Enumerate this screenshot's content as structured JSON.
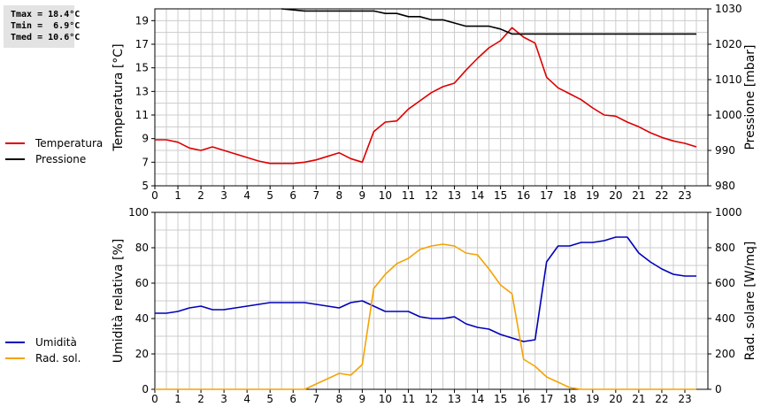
{
  "stats": {
    "tmax": "Tmax = 18.4°C",
    "tmin": "Tmin =  6.9°C",
    "tmed": "Tmed = 10.6°C"
  },
  "colors": {
    "temperature": "#dd0000",
    "pressure": "#000000",
    "humidity": "#0000bb",
    "radiation": "#f5a300",
    "grid": "#cccccc"
  },
  "legend_top": [
    {
      "label": "Temperatura",
      "color": "#dd0000"
    },
    {
      "label": "Pressione",
      "color": "#000000"
    }
  ],
  "legend_bottom": [
    {
      "label": "Umidità",
      "color": "#0000bb"
    },
    {
      "label": "Rad. sol.",
      "color": "#f5a300"
    }
  ],
  "chart_data": [
    {
      "type": "line",
      "x_ticks": [
        0,
        1,
        2,
        3,
        4,
        5,
        6,
        7,
        8,
        9,
        10,
        11,
        12,
        13,
        14,
        15,
        16,
        17,
        18,
        19,
        20,
        21,
        22,
        23
      ],
      "xlim": [
        0,
        24
      ],
      "y_left": {
        "label": "Temperatura [°C]",
        "ylim": [
          5,
          20
        ],
        "ticks": [
          5,
          7,
          9,
          11,
          13,
          15,
          17,
          19
        ]
      },
      "y_right": {
        "label": "Pressione [mbar]",
        "ylim": [
          980,
          1030
        ],
        "ticks": [
          980,
          990,
          1000,
          1010,
          1020,
          1030
        ]
      },
      "grid": true,
      "series": [
        {
          "name": "Temperatura",
          "axis": "left",
          "color": "#dd0000",
          "x": [
            0,
            0.5,
            1,
            1.5,
            2,
            2.5,
            3,
            3.5,
            4,
            4.5,
            5,
            5.5,
            6,
            6.5,
            7,
            7.5,
            8,
            8.5,
            9,
            9.5,
            10,
            10.5,
            11,
            11.5,
            12,
            12.5,
            13,
            13.5,
            14,
            14.5,
            15,
            15.5,
            16,
            16.5,
            17,
            17.5,
            18,
            18.5,
            19,
            19.5,
            20,
            20.5,
            21,
            21.5,
            22,
            22.5,
            23,
            23.5
          ],
          "values": [
            8.9,
            8.9,
            8.7,
            8.2,
            8.0,
            8.3,
            8.0,
            7.7,
            7.4,
            7.1,
            6.9,
            6.9,
            6.9,
            7.0,
            7.2,
            7.5,
            7.8,
            7.3,
            7.0,
            9.6,
            10.4,
            10.5,
            11.5,
            12.2,
            12.9,
            13.4,
            13.7,
            14.8,
            15.8,
            16.7,
            17.3,
            18.4,
            17.6,
            17.1,
            14.2,
            13.3,
            12.8,
            12.3,
            11.6,
            11.0,
            10.9,
            10.4,
            10.0,
            9.5,
            9.1,
            8.8,
            8.6,
            8.3
          ]
        },
        {
          "name": "Pressione",
          "axis": "right",
          "color": "#000000",
          "x": [
            5.5,
            6.5,
            7.5,
            8.5,
            9.5,
            10,
            10.5,
            11,
            11.5,
            12,
            12.5,
            13,
            13.5,
            14,
            14.5,
            15,
            15.5,
            16,
            16.5,
            17,
            18,
            19,
            20,
            21,
            22,
            23,
            23.5
          ],
          "values": [
            1030,
            1029.4,
            1029.4,
            1029.4,
            1029.4,
            1028.7,
            1028.7,
            1027.8,
            1027.8,
            1026.9,
            1026.9,
            1026.0,
            1025.1,
            1025.1,
            1025.1,
            1024.3,
            1022.9,
            1022.9,
            1022.9,
            1022.9,
            1022.9,
            1022.9,
            1022.9,
            1022.9,
            1022.9,
            1022.9,
            1022.9
          ]
        }
      ]
    },
    {
      "type": "line",
      "x_ticks": [
        0,
        1,
        2,
        3,
        4,
        5,
        6,
        7,
        8,
        9,
        10,
        11,
        12,
        13,
        14,
        15,
        16,
        17,
        18,
        19,
        20,
        21,
        22,
        23
      ],
      "xlim": [
        0,
        24
      ],
      "y_left": {
        "label": "Umidità relativa [%]",
        "ylim": [
          0,
          100
        ],
        "ticks": [
          0,
          20,
          40,
          60,
          80,
          100
        ]
      },
      "y_right": {
        "label": "Rad. solare [W/mq]",
        "ylim": [
          0,
          1000
        ],
        "ticks": [
          0,
          200,
          400,
          600,
          800,
          1000
        ]
      },
      "grid": true,
      "series": [
        {
          "name": "Umidità",
          "axis": "left",
          "color": "#0000bb",
          "x": [
            0,
            0.5,
            1,
            1.5,
            2,
            2.5,
            3,
            3.5,
            4,
            4.5,
            5,
            5.5,
            6,
            6.5,
            7,
            7.5,
            8,
            8.5,
            9,
            9.5,
            10,
            10.5,
            11,
            11.5,
            12,
            12.5,
            13,
            13.5,
            14,
            14.5,
            15,
            15.5,
            16,
            16.5,
            17,
            17.5,
            18,
            18.5,
            19,
            19.5,
            20,
            20.5,
            21,
            21.5,
            22,
            22.5,
            23,
            23.5
          ],
          "values": [
            43,
            43,
            44,
            46,
            47,
            45,
            45,
            46,
            47,
            48,
            49,
            49,
            49,
            49,
            48,
            47,
            46,
            49,
            50,
            47,
            44,
            44,
            44,
            41,
            40,
            40,
            41,
            37,
            35,
            34,
            31,
            29,
            27,
            28,
            72,
            81,
            81,
            83,
            83,
            84,
            86,
            86,
            77,
            72,
            68,
            65,
            64,
            64
          ]
        },
        {
          "name": "Rad. sol.",
          "axis": "right",
          "color": "#f5a300",
          "x": [
            0,
            6.5,
            7,
            7.5,
            8,
            8.5,
            9,
            9.5,
            10,
            10.5,
            11,
            11.5,
            12,
            12.5,
            13,
            13.5,
            14,
            14.5,
            15,
            15.5,
            16,
            16.5,
            17,
            17.5,
            18,
            18.5,
            23.5
          ],
          "values": [
            0,
            0,
            30,
            60,
            90,
            80,
            140,
            570,
            650,
            710,
            740,
            790,
            810,
            820,
            810,
            770,
            760,
            680,
            590,
            540,
            170,
            130,
            70,
            40,
            10,
            0,
            0
          ]
        }
      ]
    }
  ]
}
